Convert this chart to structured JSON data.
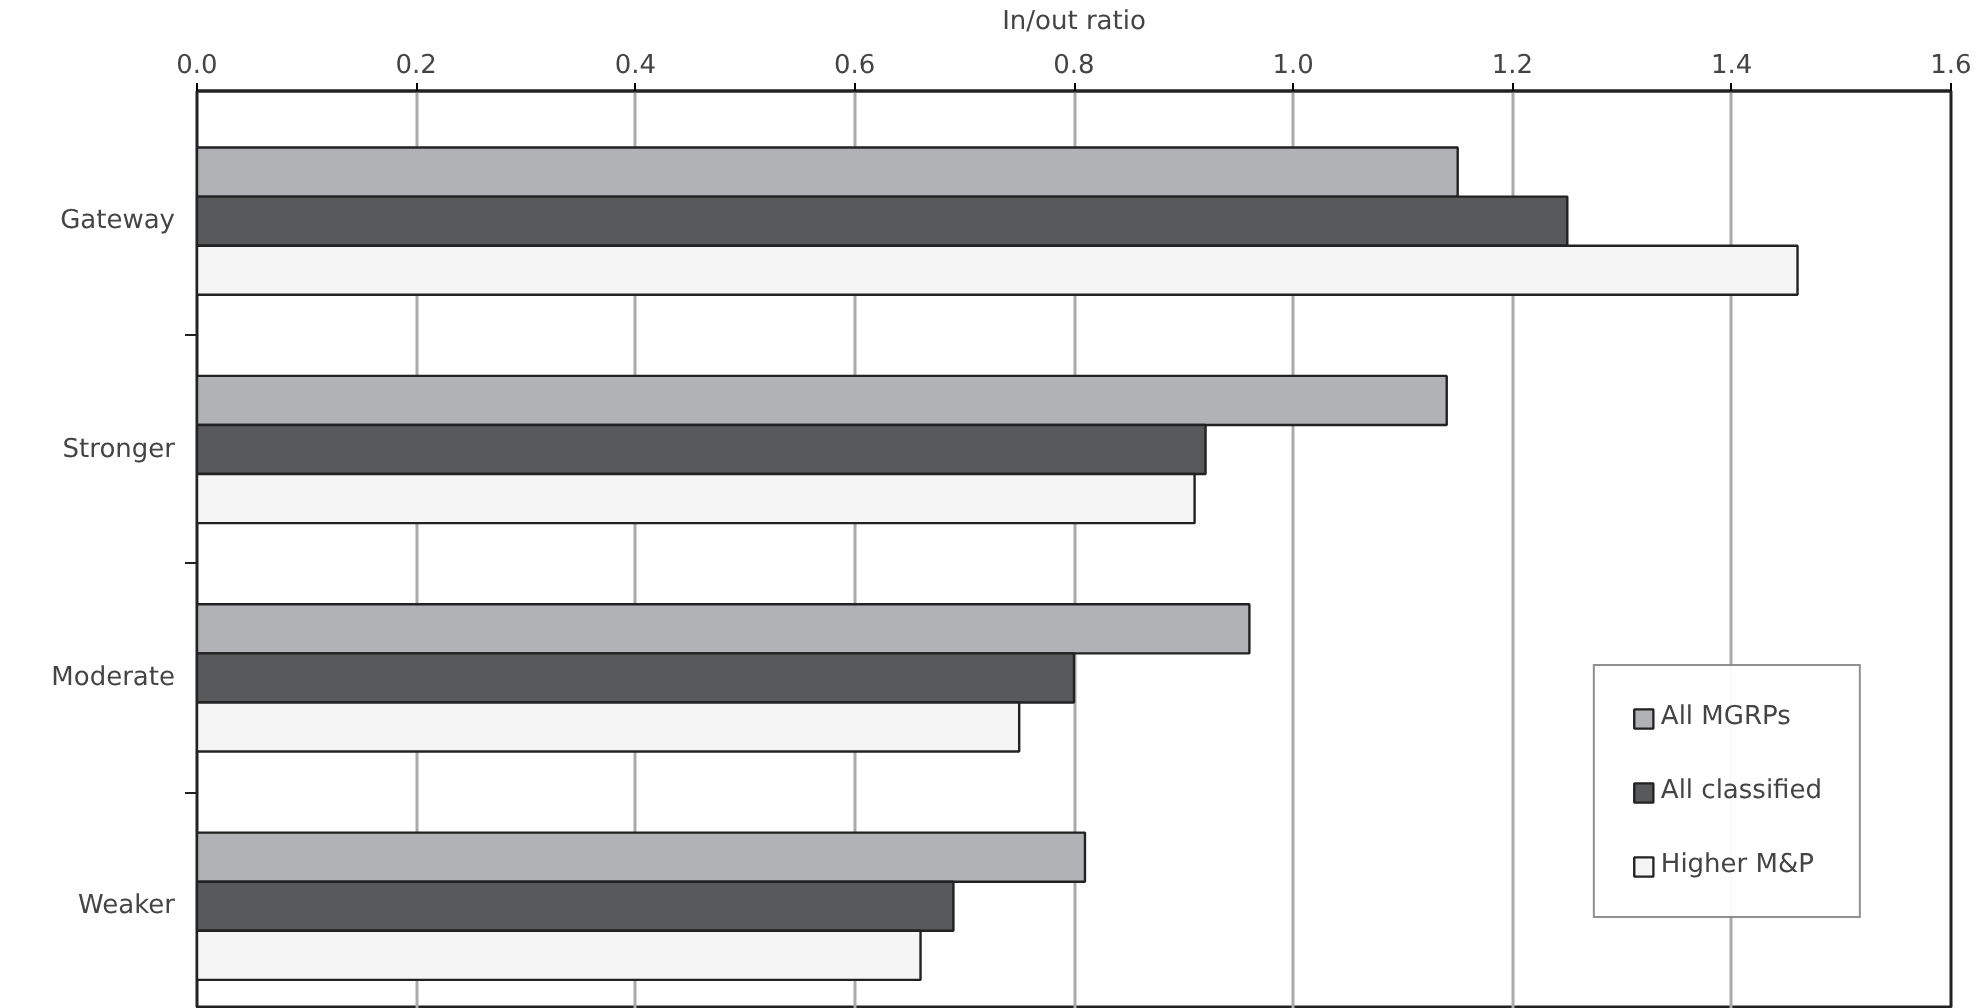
{
  "chart_data": {
    "type": "bar",
    "orientation": "horizontal",
    "xlabel": "In/out ratio",
    "categories": [
      "Gateway",
      "Stronger",
      "Moderate",
      "Weaker"
    ],
    "series": [
      {
        "name": "All MGRPs",
        "color": "#b1b2b6",
        "values": [
          1.15,
          1.14,
          0.96,
          0.81
        ]
      },
      {
        "name": "All classified",
        "color": "#58595b",
        "values": [
          1.25,
          0.92,
          0.8,
          0.69
        ]
      },
      {
        "name": "Higher M&P",
        "color": "#f5f5f5",
        "values": [
          1.46,
          0.91,
          0.75,
          0.66
        ]
      }
    ],
    "xlim": [
      0,
      1.6
    ],
    "xticks": [
      {
        "value": 0,
        "label": "0.0"
      },
      {
        "value": 0.2,
        "label": "0.2"
      },
      {
        "value": 0.4,
        "label": "0.4"
      },
      {
        "value": 0.6,
        "label": "0.6"
      },
      {
        "value": 0.8,
        "label": "0.8"
      },
      {
        "value": 1,
        "label": "1.0"
      },
      {
        "value": 1.2,
        "label": "1.2"
      },
      {
        "value": 1.4,
        "label": "1.4"
      },
      {
        "value": 1.6,
        "label": "1.6"
      }
    ],
    "grid": "x",
    "legend": "bottom right"
  }
}
